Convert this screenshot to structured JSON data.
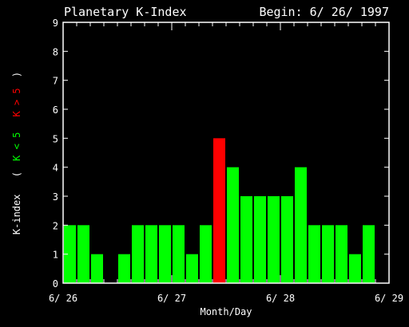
{
  "chart_data": {
    "type": "bar",
    "title": "Planetary K-Index",
    "subtitle": "Begin: 6/ 26/ 1997",
    "xlabel": "Month/Day",
    "ylabel_prefix": "K-index",
    "legend": {
      "open": "(",
      "green": "K < 5",
      "red": "K > 5",
      "close": ")"
    },
    "ylim": [
      0,
      9
    ],
    "yticks": [
      "0",
      "1",
      "2",
      "3",
      "4",
      "5",
      "6",
      "7",
      "8",
      "9"
    ],
    "xlim": [
      0,
      24
    ],
    "xticks": [
      {
        "pos": 0,
        "label": "6/ 26"
      },
      {
        "pos": 8,
        "label": "6/ 27"
      },
      {
        "pos": 16,
        "label": "6/ 28"
      },
      {
        "pos": 24,
        "label": "6/ 29"
      }
    ],
    "values": [
      2,
      2,
      1,
      0,
      1,
      2,
      2,
      2,
      2,
      1,
      2,
      5,
      4,
      3,
      3,
      3,
      3,
      4,
      2,
      2,
      2,
      1,
      2
    ],
    "threshold": 5,
    "colors": {
      "background": "#000000",
      "axes": "#ffffff",
      "text": "#ffffff",
      "below": "#00ff00",
      "above": "#ff0000"
    }
  }
}
